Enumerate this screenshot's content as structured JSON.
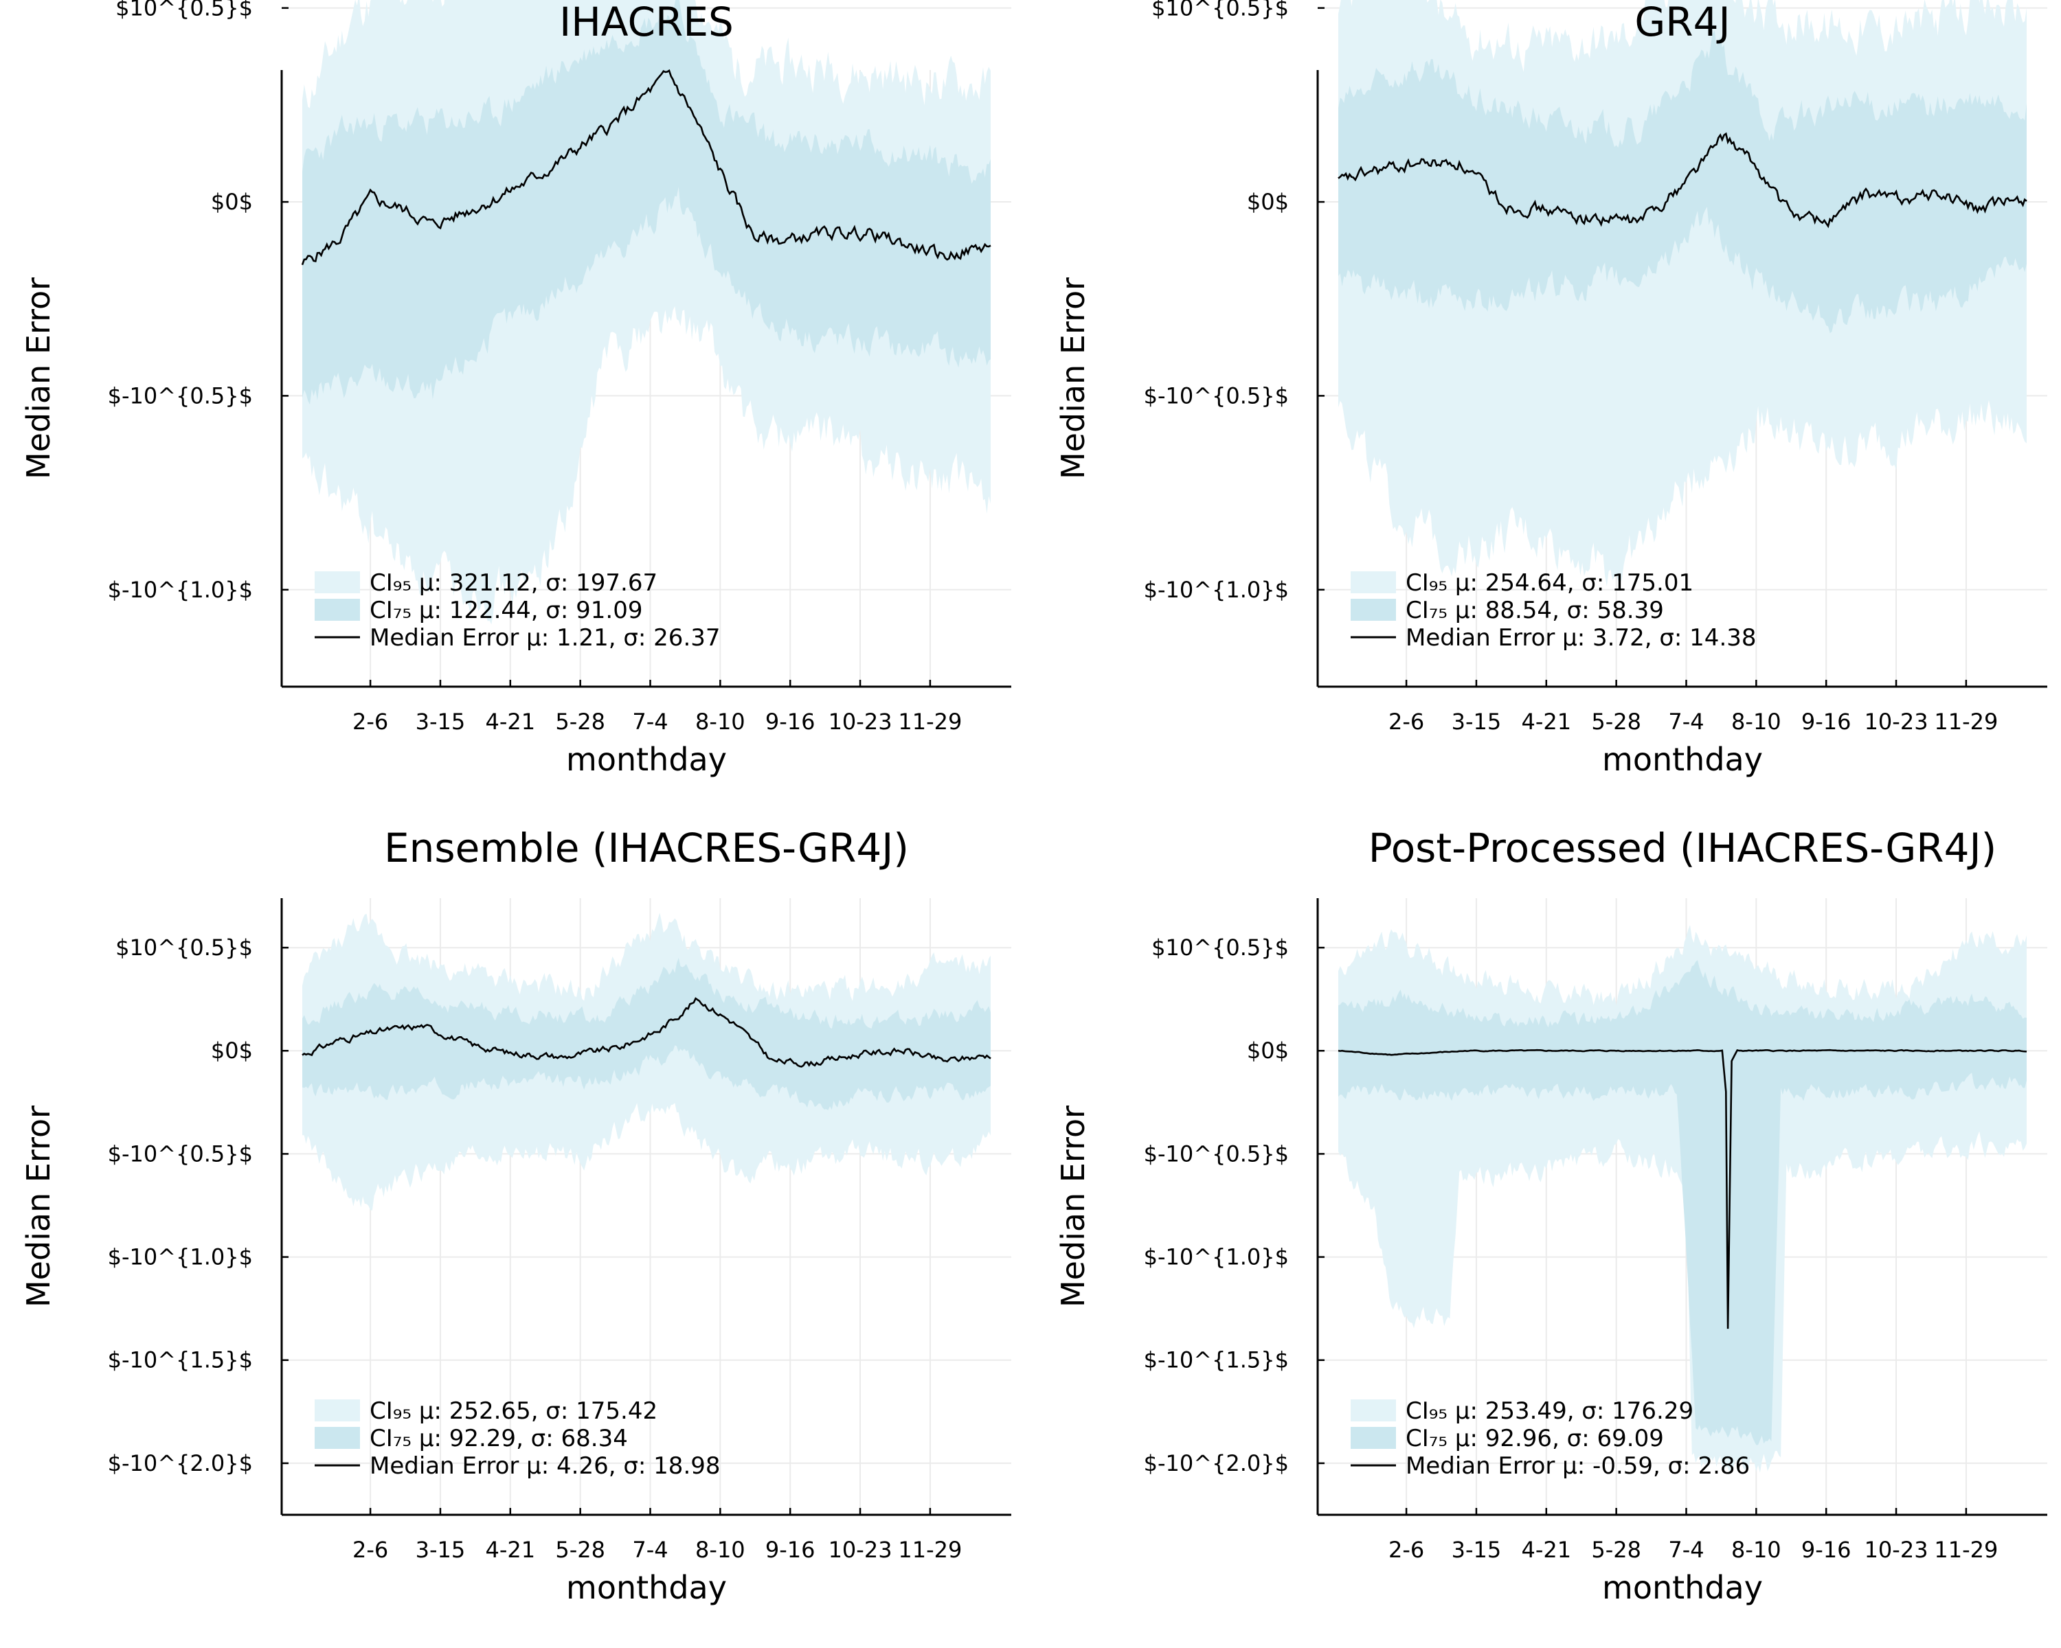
{
  "colors": {
    "ci95": "#e3f3f8",
    "ci75": "#cbe7ef",
    "median": "#000000",
    "grid": "#ebebeb"
  },
  "chart_data": [
    {
      "type": "area",
      "title": "IHACRES",
      "xlabel": "monthday",
      "ylabel": "Median Error",
      "x_ticks": [
        "2-6",
        "3-15",
        "4-21",
        "5-28",
        "7-4",
        "8-10",
        "9-16",
        "10-23",
        "11-29"
      ],
      "y_ticks": [
        {
          "label": "$10^{0.5}$",
          "value": 0.5
        },
        {
          "label": "$0$",
          "value": 0
        },
        {
          "label": "$-10^{0.5}$",
          "value": -0.5
        },
        {
          "label": "$-10^{1.0}$",
          "value": -1.0
        }
      ],
      "ylim": [
        -1.25,
        0.34
      ],
      "legend": [
        "CI₉₅ μ: 321.12, σ: 197.67",
        "CI₇₅ μ: 122.44, σ: 91.09",
        "Median Error μ: 1.21, σ: 26.37"
      ],
      "legend_position": "bottom-left",
      "grid": true,
      "series_shape": {
        "median": [
          [
            1,
            -0.16
          ],
          [
            20,
            -0.1
          ],
          [
            37,
            0.01
          ],
          [
            55,
            -0.02
          ],
          [
            70,
            -0.06
          ],
          [
            85,
            -0.03
          ],
          [
            104,
            0.01
          ],
          [
            130,
            0.08
          ],
          [
            165,
            0.2
          ],
          [
            195,
            0.33
          ],
          [
            205,
            0.25
          ],
          [
            225,
            0.05
          ],
          [
            240,
            -0.09
          ],
          [
            255,
            -0.1
          ],
          [
            280,
            -0.08
          ],
          [
            300,
            -0.08
          ],
          [
            320,
            -0.11
          ],
          [
            340,
            -0.14
          ],
          [
            358,
            -0.12
          ],
          [
            365,
            -0.11
          ]
        ],
        "ci75_upper": [
          [
            1,
            0.1
          ],
          [
            30,
            0.2
          ],
          [
            60,
            0.2
          ],
          [
            100,
            0.22
          ],
          [
            140,
            0.35
          ],
          [
            175,
            0.45
          ],
          [
            200,
            0.5
          ],
          [
            220,
            0.25
          ],
          [
            250,
            0.15
          ],
          [
            300,
            0.15
          ],
          [
            365,
            0.08
          ]
        ],
        "ci75_lower": [
          [
            1,
            -0.5
          ],
          [
            40,
            -0.45
          ],
          [
            70,
            -0.5
          ],
          [
            100,
            -0.35
          ],
          [
            130,
            -0.25
          ],
          [
            160,
            -0.15
          ],
          [
            200,
            0.0
          ],
          [
            240,
            -0.3
          ],
          [
            280,
            -0.35
          ],
          [
            320,
            -0.38
          ],
          [
            365,
            -0.4
          ]
        ],
        "ci95_upper": [
          [
            1,
            0.25
          ],
          [
            30,
            0.5
          ],
          [
            60,
            0.55
          ],
          [
            100,
            0.58
          ],
          [
            140,
            0.62
          ],
          [
            180,
            0.72
          ],
          [
            205,
            0.58
          ],
          [
            230,
            0.35
          ],
          [
            270,
            0.35
          ],
          [
            320,
            0.32
          ],
          [
            365,
            0.3
          ]
        ],
        "ci95_lower": [
          [
            1,
            -0.7
          ],
          [
            30,
            -0.8
          ],
          [
            60,
            -0.95
          ],
          [
            90,
            -1.0
          ],
          [
            120,
            -1.0
          ],
          [
            145,
            -0.75
          ],
          [
            160,
            -0.4
          ],
          [
            190,
            -0.3
          ],
          [
            215,
            -0.35
          ],
          [
            240,
            -0.6
          ],
          [
            280,
            -0.6
          ],
          [
            320,
            -0.7
          ],
          [
            365,
            -0.75
          ]
        ]
      }
    },
    {
      "type": "area",
      "title": "GR4J",
      "xlabel": "monthday",
      "ylabel": "Median Error",
      "x_ticks": [
        "2-6",
        "3-15",
        "4-21",
        "5-28",
        "7-4",
        "8-10",
        "9-16",
        "10-23",
        "11-29"
      ],
      "y_ticks": [
        {
          "label": "$10^{0.5}$",
          "value": 0.5
        },
        {
          "label": "$0$",
          "value": 0
        },
        {
          "label": "$-10^{0.5}$",
          "value": -0.5
        },
        {
          "label": "$-10^{1.0}$",
          "value": -1.0
        }
      ],
      "ylim": [
        -1.25,
        0.34
      ],
      "legend": [
        "CI₉₅ μ: 254.64, σ: 175.01",
        "CI₇₅ μ: 88.54, σ: 58.39",
        "Median Error μ: 3.72, σ: 14.38"
      ],
      "legend_position": "bottom-left",
      "grid": true,
      "series_shape": {
        "median": [
          [
            1,
            0.05
          ],
          [
            20,
            0.08
          ],
          [
            45,
            0.1
          ],
          [
            65,
            0.1
          ],
          [
            90,
            -0.01
          ],
          [
            110,
            -0.02
          ],
          [
            130,
            -0.04
          ],
          [
            160,
            -0.05
          ],
          [
            180,
            0.03
          ],
          [
            205,
            0.17
          ],
          [
            220,
            0.1
          ],
          [
            240,
            -0.03
          ],
          [
            260,
            -0.05
          ],
          [
            280,
            0.02
          ],
          [
            300,
            0.01
          ],
          [
            320,
            0.02
          ],
          [
            340,
            -0.02
          ],
          [
            365,
            0.01
          ]
        ],
        "ci75_upper": [
          [
            1,
            0.25
          ],
          [
            40,
            0.35
          ],
          [
            80,
            0.25
          ],
          [
            120,
            0.2
          ],
          [
            160,
            0.18
          ],
          [
            200,
            0.4
          ],
          [
            230,
            0.2
          ],
          [
            270,
            0.25
          ],
          [
            320,
            0.25
          ],
          [
            365,
            0.25
          ]
        ],
        "ci75_lower": [
          [
            1,
            -0.2
          ],
          [
            40,
            -0.25
          ],
          [
            80,
            -0.25
          ],
          [
            120,
            -0.22
          ],
          [
            160,
            -0.2
          ],
          [
            195,
            -0.05
          ],
          [
            230,
            -0.25
          ],
          [
            270,
            -0.3
          ],
          [
            320,
            -0.25
          ],
          [
            365,
            -0.15
          ]
        ],
        "ci95_upper": [
          [
            1,
            0.45
          ],
          [
            30,
            0.75
          ],
          [
            60,
            0.45
          ],
          [
            100,
            0.4
          ],
          [
            150,
            0.42
          ],
          [
            190,
            0.65
          ],
          [
            220,
            0.5
          ],
          [
            260,
            0.45
          ],
          [
            300,
            0.45
          ],
          [
            340,
            0.5
          ],
          [
            365,
            0.5
          ]
        ],
        "ci95_lower": [
          [
            1,
            -0.5
          ],
          [
            30,
            -0.8
          ],
          [
            60,
            -0.9
          ],
          [
            100,
            -0.85
          ],
          [
            150,
            -0.95
          ],
          [
            190,
            -0.7
          ],
          [
            230,
            -0.55
          ],
          [
            260,
            -0.65
          ],
          [
            300,
            -0.6
          ],
          [
            340,
            -0.55
          ],
          [
            365,
            -0.6
          ]
        ]
      }
    },
    {
      "type": "area",
      "title": "Ensemble (IHACRES-GR4J)",
      "xlabel": "monthday",
      "ylabel": "Median Error",
      "x_ticks": [
        "2-6",
        "3-15",
        "4-21",
        "5-28",
        "7-4",
        "8-10",
        "9-16",
        "10-23",
        "11-29"
      ],
      "y_ticks": [
        {
          "label": "$10^{0.5}$",
          "value": 0.5
        },
        {
          "label": "$0$",
          "value": 0
        },
        {
          "label": "$-10^{0.5}$",
          "value": -0.5
        },
        {
          "label": "$-10^{1.0}$",
          "value": -1.0
        },
        {
          "label": "$-10^{1.5}$",
          "value": -1.5
        },
        {
          "label": "$-10^{2.0}$",
          "value": -2.0
        }
      ],
      "ylim": [
        -2.25,
        0.74
      ],
      "legend": [
        "CI₉₅ μ: 252.65, σ: 175.42",
        "CI₇₅ μ: 92.29, σ: 68.34",
        "Median Error μ: 4.26, σ: 18.98"
      ],
      "legend_position": "bottom-left",
      "grid": true,
      "series_shape": {
        "median": [
          [
            1,
            -0.02
          ],
          [
            20,
            0.05
          ],
          [
            45,
            0.1
          ],
          [
            65,
            0.12
          ],
          [
            90,
            0.03
          ],
          [
            110,
            -0.01
          ],
          [
            140,
            -0.03
          ],
          [
            170,
            0.02
          ],
          [
            190,
            0.1
          ],
          [
            210,
            0.25
          ],
          [
            230,
            0.13
          ],
          [
            250,
            -0.05
          ],
          [
            270,
            -0.06
          ],
          [
            300,
            -0.01
          ],
          [
            320,
            0.0
          ],
          [
            340,
            -0.05
          ],
          [
            365,
            -0.02
          ]
        ],
        "ci75_upper": [
          [
            1,
            0.15
          ],
          [
            40,
            0.3
          ],
          [
            80,
            0.22
          ],
          [
            120,
            0.18
          ],
          [
            160,
            0.15
          ],
          [
            200,
            0.42
          ],
          [
            230,
            0.25
          ],
          [
            270,
            0.15
          ],
          [
            320,
            0.15
          ],
          [
            365,
            0.2
          ]
        ],
        "ci75_lower": [
          [
            1,
            -0.2
          ],
          [
            40,
            -0.2
          ],
          [
            80,
            -0.17
          ],
          [
            120,
            -0.15
          ],
          [
            160,
            -0.15
          ],
          [
            200,
            0.0
          ],
          [
            230,
            -0.15
          ],
          [
            270,
            -0.25
          ],
          [
            320,
            -0.2
          ],
          [
            365,
            -0.2
          ]
        ],
        "ci95_upper": [
          [
            1,
            0.35
          ],
          [
            30,
            0.62
          ],
          [
            60,
            0.45
          ],
          [
            100,
            0.35
          ],
          [
            150,
            0.28
          ],
          [
            190,
            0.62
          ],
          [
            220,
            0.42
          ],
          [
            260,
            0.28
          ],
          [
            300,
            0.3
          ],
          [
            340,
            0.4
          ],
          [
            365,
            0.4
          ]
        ],
        "ci95_lower": [
          [
            1,
            -0.4
          ],
          [
            30,
            -0.75
          ],
          [
            60,
            -0.6
          ],
          [
            100,
            -0.5
          ],
          [
            150,
            -0.5
          ],
          [
            190,
            -0.25
          ],
          [
            230,
            -0.6
          ],
          [
            260,
            -0.55
          ],
          [
            300,
            -0.5
          ],
          [
            340,
            -0.55
          ],
          [
            365,
            -0.45
          ]
        ]
      }
    },
    {
      "type": "area",
      "title": "Post-Processed (IHACRES-GR4J)",
      "xlabel": "monthday",
      "ylabel": "Median Error",
      "x_ticks": [
        "2-6",
        "3-15",
        "4-21",
        "5-28",
        "7-4",
        "8-10",
        "9-16",
        "10-23",
        "11-29"
      ],
      "y_ticks": [
        {
          "label": "$10^{0.5}$",
          "value": 0.5
        },
        {
          "label": "$0$",
          "value": 0
        },
        {
          "label": "$-10^{0.5}$",
          "value": -0.5
        },
        {
          "label": "$-10^{1.0}$",
          "value": -1.0
        },
        {
          "label": "$-10^{1.5}$",
          "value": -1.5
        },
        {
          "label": "$-10^{2.0}$",
          "value": -2.0
        }
      ],
      "ylim": [
        -2.25,
        0.74
      ],
      "legend": [
        "CI₉₅ μ: 253.49, σ: 176.29",
        "CI₇₅ μ: 92.96, σ: 69.09",
        "Median Error μ: -0.59, σ: 2.86"
      ],
      "legend_position": "bottom-left",
      "grid": true,
      "series_shape": {
        "median": [
          [
            1,
            0
          ],
          [
            30,
            -0.02
          ],
          [
            70,
            0
          ],
          [
            150,
            0
          ],
          [
            204,
            0
          ],
          [
            206,
            -0.2
          ],
          [
            207,
            -1.35
          ],
          [
            209,
            -0.05
          ],
          [
            212,
            0
          ],
          [
            365,
            0
          ]
        ],
        "ci75_upper": [
          [
            1,
            0.2
          ],
          [
            40,
            0.25
          ],
          [
            80,
            0.15
          ],
          [
            150,
            0.15
          ],
          [
            190,
            0.4
          ],
          [
            220,
            0.2
          ],
          [
            270,
            0.15
          ],
          [
            330,
            0.25
          ],
          [
            365,
            0.2
          ]
        ],
        "ci75_lower": [
          [
            1,
            -0.2
          ],
          [
            40,
            -0.2
          ],
          [
            100,
            -0.2
          ],
          [
            180,
            -0.2
          ],
          [
            190,
            -1.8
          ],
          [
            230,
            -1.9
          ],
          [
            235,
            -0.2
          ],
          [
            300,
            -0.2
          ],
          [
            365,
            -0.15
          ]
        ],
        "ci95_upper": [
          [
            1,
            0.4
          ],
          [
            30,
            0.55
          ],
          [
            60,
            0.4
          ],
          [
            100,
            0.3
          ],
          [
            150,
            0.25
          ],
          [
            190,
            0.55
          ],
          [
            220,
            0.4
          ],
          [
            260,
            0.3
          ],
          [
            300,
            0.3
          ],
          [
            340,
            0.55
          ],
          [
            365,
            0.5
          ]
        ],
        "ci95_lower": [
          [
            1,
            -0.5
          ],
          [
            20,
            -0.8
          ],
          [
            30,
            -1.3
          ],
          [
            60,
            -1.3
          ],
          [
            65,
            -0.6
          ],
          [
            100,
            -0.6
          ],
          [
            150,
            -0.5
          ],
          [
            185,
            -0.6
          ],
          [
            188,
            -2.0
          ],
          [
            235,
            -2.0
          ],
          [
            238,
            -0.6
          ],
          [
            300,
            -0.5
          ],
          [
            365,
            -0.45
          ]
        ]
      }
    }
  ]
}
